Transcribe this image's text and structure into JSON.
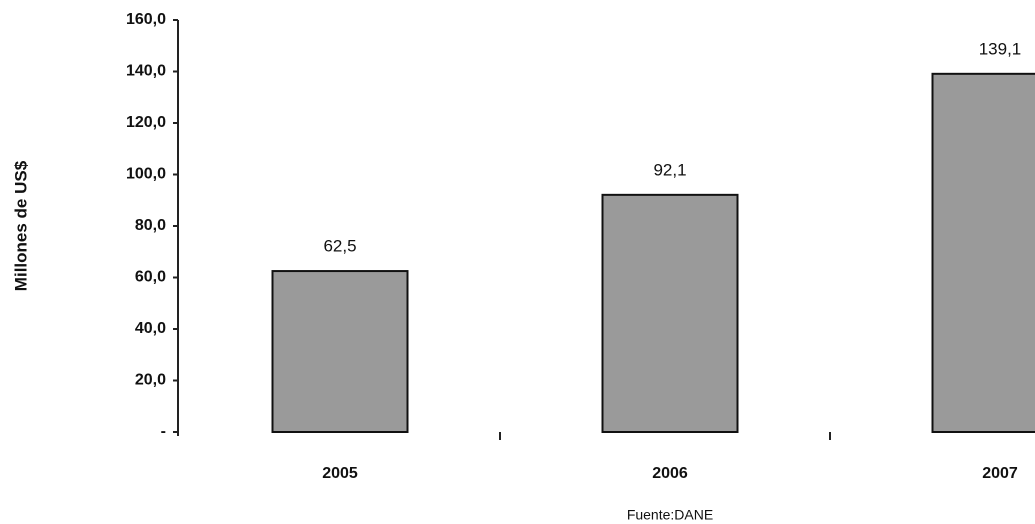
{
  "chart_data": {
    "type": "bar",
    "y_label": "Millones de US$",
    "source": "Fuente:DANE",
    "categories": [
      "2005",
      "2006",
      "2007"
    ],
    "values": [
      62.5,
      92.1,
      139.1
    ],
    "value_labels": [
      "62,5",
      "92,1",
      "139,1"
    ],
    "color": "#9a9a9a",
    "ylim": [
      0,
      160
    ],
    "yticks": [
      {
        "value": 0,
        "label": "-"
      },
      {
        "value": 20,
        "label": "20,0"
      },
      {
        "value": 40,
        "label": "40,0"
      },
      {
        "value": 60,
        "label": "60,0"
      },
      {
        "value": 80,
        "label": "80,0"
      },
      {
        "value": 100,
        "label": "100,0"
      },
      {
        "value": 120,
        "label": "120,0"
      },
      {
        "value": 140,
        "label": "140,0"
      },
      {
        "value": 160,
        "label": "160,0"
      }
    ],
    "grid": false
  }
}
